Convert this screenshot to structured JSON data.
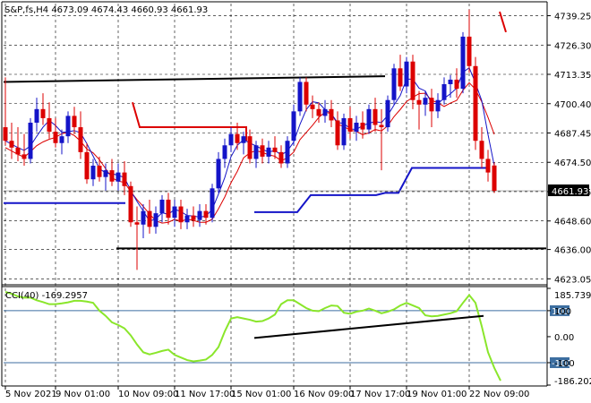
{
  "chart_data": {
    "type": "candlestick",
    "title": "S&P,fs,H4  4673.09 4674.43 4660.93 4661.93",
    "symbol": "S&P,fs,H4",
    "ohlc_last": [
      "4673.09",
      "4674.43",
      "4660.93",
      "4661.93"
    ],
    "price_axis": {
      "ticks": [
        "4739.25",
        "4726.30",
        "4713.35",
        "4700.40",
        "4687.45",
        "4674.50",
        "4661.55",
        "4648.60",
        "4636.00",
        "4623.05"
      ],
      "range": [
        4620,
        4745
      ],
      "current_price_label": "4661.93"
    },
    "time_axis": {
      "labels": [
        "5 Nov 2021",
        "9 Nov 01:00",
        "10 Nov 09:00",
        "11 Nov 17:00",
        "15 Nov 01:00",
        "16 Nov 09:00",
        "17 Nov 17:00",
        "19 Nov 01:00",
        "22 Nov 09:00"
      ]
    },
    "candles": [
      {
        "o": 4690,
        "h": 4712,
        "l": 4682,
        "c": 4684
      },
      {
        "o": 4684,
        "h": 4692,
        "l": 4676,
        "c": 4681
      },
      {
        "o": 4681,
        "h": 4690,
        "l": 4675,
        "c": 4678
      },
      {
        "o": 4678,
        "h": 4687,
        "l": 4673,
        "c": 4676
      },
      {
        "o": 4676,
        "h": 4694,
        "l": 4674,
        "c": 4692
      },
      {
        "o": 4692,
        "h": 4703,
        "l": 4688,
        "c": 4698
      },
      {
        "o": 4698,
        "h": 4705,
        "l": 4691,
        "c": 4694
      },
      {
        "o": 4694,
        "h": 4701,
        "l": 4685,
        "c": 4688
      },
      {
        "o": 4688,
        "h": 4694,
        "l": 4681,
        "c": 4683
      },
      {
        "o": 4683,
        "h": 4689,
        "l": 4678,
        "c": 4686
      },
      {
        "o": 4686,
        "h": 4697,
        "l": 4683,
        "c": 4695
      },
      {
        "o": 4695,
        "h": 4699,
        "l": 4687,
        "c": 4690
      },
      {
        "o": 4690,
        "h": 4697,
        "l": 4676,
        "c": 4679
      },
      {
        "o": 4679,
        "h": 4683,
        "l": 4665,
        "c": 4667
      },
      {
        "o": 4667,
        "h": 4676,
        "l": 4664,
        "c": 4673
      },
      {
        "o": 4673,
        "h": 4677,
        "l": 4666,
        "c": 4668
      },
      {
        "o": 4668,
        "h": 4674,
        "l": 4662,
        "c": 4671
      },
      {
        "o": 4671,
        "h": 4676,
        "l": 4664,
        "c": 4666
      },
      {
        "o": 4666,
        "h": 4674,
        "l": 4662,
        "c": 4670
      },
      {
        "o": 4670,
        "h": 4675,
        "l": 4660,
        "c": 4664
      },
      {
        "o": 4664,
        "h": 4666,
        "l": 4646,
        "c": 4648
      },
      {
        "o": 4648,
        "h": 4655,
        "l": 4627,
        "c": 4647
      },
      {
        "o": 4647,
        "h": 4656,
        "l": 4641,
        "c": 4653
      },
      {
        "o": 4653,
        "h": 4658,
        "l": 4643,
        "c": 4646
      },
      {
        "o": 4646,
        "h": 4655,
        "l": 4643,
        "c": 4652
      },
      {
        "o": 4652,
        "h": 4660,
        "l": 4648,
        "c": 4658
      },
      {
        "o": 4658,
        "h": 4661,
        "l": 4647,
        "c": 4650
      },
      {
        "o": 4650,
        "h": 4658,
        "l": 4646,
        "c": 4655
      },
      {
        "o": 4655,
        "h": 4658,
        "l": 4645,
        "c": 4648
      },
      {
        "o": 4648,
        "h": 4654,
        "l": 4645,
        "c": 4651
      },
      {
        "o": 4651,
        "h": 4655,
        "l": 4646,
        "c": 4649
      },
      {
        "o": 4649,
        "h": 4656,
        "l": 4646,
        "c": 4653
      },
      {
        "o": 4653,
        "h": 4656,
        "l": 4647,
        "c": 4650
      },
      {
        "o": 4650,
        "h": 4665,
        "l": 4648,
        "c": 4663
      },
      {
        "o": 4663,
        "h": 4679,
        "l": 4661,
        "c": 4676
      },
      {
        "o": 4676,
        "h": 4685,
        "l": 4672,
        "c": 4682
      },
      {
        "o": 4682,
        "h": 4690,
        "l": 4679,
        "c": 4687
      },
      {
        "o": 4687,
        "h": 4692,
        "l": 4680,
        "c": 4683
      },
      {
        "o": 4683,
        "h": 4688,
        "l": 4678,
        "c": 4686
      },
      {
        "o": 4686,
        "h": 4689,
        "l": 4674,
        "c": 4676
      },
      {
        "o": 4676,
        "h": 4684,
        "l": 4672,
        "c": 4682
      },
      {
        "o": 4682,
        "h": 4685,
        "l": 4674,
        "c": 4677
      },
      {
        "o": 4677,
        "h": 4684,
        "l": 4674,
        "c": 4681
      },
      {
        "o": 4681,
        "h": 4686,
        "l": 4676,
        "c": 4679
      },
      {
        "o": 4679,
        "h": 4682,
        "l": 4672,
        "c": 4674
      },
      {
        "o": 4674,
        "h": 4686,
        "l": 4672,
        "c": 4684
      },
      {
        "o": 4684,
        "h": 4700,
        "l": 4682,
        "c": 4697
      },
      {
        "o": 4697,
        "h": 4712,
        "l": 4695,
        "c": 4710
      },
      {
        "o": 4710,
        "h": 4712,
        "l": 4697,
        "c": 4700
      },
      {
        "o": 4700,
        "h": 4704,
        "l": 4694,
        "c": 4698
      },
      {
        "o": 4698,
        "h": 4701,
        "l": 4692,
        "c": 4695
      },
      {
        "o": 4695,
        "h": 4702,
        "l": 4692,
        "c": 4698
      },
      {
        "o": 4698,
        "h": 4702,
        "l": 4690,
        "c": 4693
      },
      {
        "o": 4693,
        "h": 4697,
        "l": 4680,
        "c": 4682
      },
      {
        "o": 4682,
        "h": 4696,
        "l": 4680,
        "c": 4694
      },
      {
        "o": 4694,
        "h": 4699,
        "l": 4685,
        "c": 4688
      },
      {
        "o": 4688,
        "h": 4695,
        "l": 4684,
        "c": 4692
      },
      {
        "o": 4692,
        "h": 4697,
        "l": 4685,
        "c": 4689
      },
      {
        "o": 4689,
        "h": 4700,
        "l": 4687,
        "c": 4698
      },
      {
        "o": 4698,
        "h": 4703,
        "l": 4688,
        "c": 4691
      },
      {
        "o": 4691,
        "h": 4698,
        "l": 4671,
        "c": 4690
      },
      {
        "o": 4690,
        "h": 4704,
        "l": 4688,
        "c": 4702
      },
      {
        "o": 4702,
        "h": 4718,
        "l": 4700,
        "c": 4716
      },
      {
        "o": 4716,
        "h": 4722,
        "l": 4706,
        "c": 4708
      },
      {
        "o": 4708,
        "h": 4721,
        "l": 4705,
        "c": 4719
      },
      {
        "o": 4719,
        "h": 4722,
        "l": 4698,
        "c": 4702
      },
      {
        "o": 4702,
        "h": 4706,
        "l": 4689,
        "c": 4700
      },
      {
        "o": 4700,
        "h": 4706,
        "l": 4695,
        "c": 4703
      },
      {
        "o": 4703,
        "h": 4707,
        "l": 4690,
        "c": 4697
      },
      {
        "o": 4697,
        "h": 4705,
        "l": 4694,
        "c": 4702
      },
      {
        "o": 4702,
        "h": 4712,
        "l": 4700,
        "c": 4709
      },
      {
        "o": 4709,
        "h": 4713,
        "l": 4703,
        "c": 4711
      },
      {
        "o": 4711,
        "h": 4716,
        "l": 4703,
        "c": 4707
      },
      {
        "o": 4707,
        "h": 4732,
        "l": 4705,
        "c": 4730
      },
      {
        "o": 4730,
        "h": 4742,
        "l": 4714,
        "c": 4717
      },
      {
        "o": 4717,
        "h": 4721,
        "l": 4680,
        "c": 4684
      },
      {
        "o": 4684,
        "h": 4690,
        "l": 4672,
        "c": 4676
      },
      {
        "o": 4676,
        "h": 4680,
        "l": 4666,
        "c": 4670
      },
      {
        "o": 4673.09,
        "h": 4674.43,
        "l": 4660.93,
        "c": 4661.93
      }
    ],
    "levels": {
      "black_upper": 4712,
      "black_lower": 4636.5
    },
    "indicator": {
      "name": "CCI(40)",
      "value_label": "-169.2957",
      "ticks": [
        "185.7391",
        "100",
        "0.00",
        "-100",
        "-186.2021"
      ],
      "levels": [
        100,
        -100
      ],
      "range": [
        -186.2021,
        185.7391
      ],
      "values": [
        172,
        165,
        155,
        150,
        150,
        140,
        133,
        125,
        125,
        128,
        132,
        138,
        138,
        135,
        130,
        100,
        80,
        55,
        45,
        32,
        5,
        -30,
        -60,
        -68,
        -62,
        -55,
        -50,
        -70,
        -80,
        -90,
        -95,
        -92,
        -88,
        -70,
        -40,
        20,
        70,
        75,
        70,
        65,
        58,
        60,
        70,
        85,
        125,
        140,
        140,
        125,
        110,
        100,
        98,
        110,
        120,
        118,
        92,
        88,
        96,
        100,
        108,
        100,
        90,
        96,
        105,
        120,
        130,
        120,
        110,
        82,
        78,
        80,
        85,
        90,
        98,
        130,
        160,
        130,
        40,
        -60,
        -120,
        -169.2957
      ]
    },
    "colors": {
      "bull": "#1414c8",
      "bear": "#dc0000",
      "ma_red": "#dc0000",
      "ma_blue": "#1414c8",
      "support_blue": "#1414c8",
      "level_black": "#000000",
      "cci": "#8ae62b",
      "level_lines": "#3c6ea0",
      "grid": "#000000"
    },
    "grid": true,
    "legend": "none"
  }
}
